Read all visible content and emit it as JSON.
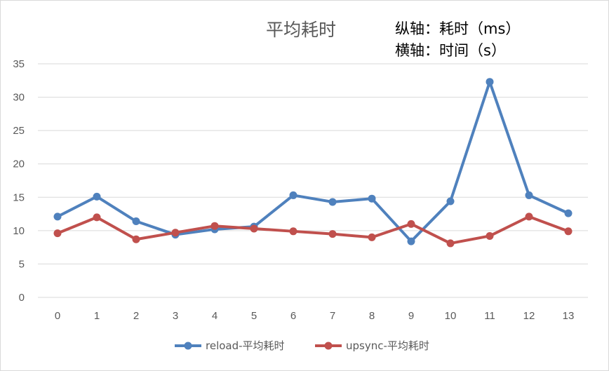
{
  "chart_data": {
    "type": "line",
    "title": "平均耗时",
    "annotations": [
      "纵轴：耗时（ms）",
      "横轴：时间（s）"
    ],
    "x": [
      0,
      1,
      2,
      3,
      4,
      5,
      6,
      7,
      8,
      9,
      10,
      11,
      12,
      13
    ],
    "ylim": [
      0,
      35
    ],
    "yticks": [
      0,
      5,
      10,
      15,
      20,
      25,
      30,
      35
    ],
    "grid": true,
    "legend_position": "bottom",
    "series": [
      {
        "name": "reload-平均耗时",
        "color": "#4f81bd",
        "values": [
          12.1,
          15.1,
          11.4,
          9.4,
          10.2,
          10.6,
          15.3,
          14.3,
          14.8,
          8.4,
          14.4,
          32.3,
          15.3,
          12.6
        ]
      },
      {
        "name": "upsync-平均耗时",
        "color": "#c0504d",
        "values": [
          9.6,
          12.0,
          8.7,
          9.7,
          10.7,
          10.3,
          9.9,
          9.5,
          9.0,
          11.0,
          8.1,
          9.2,
          12.1,
          9.9
        ]
      }
    ]
  }
}
